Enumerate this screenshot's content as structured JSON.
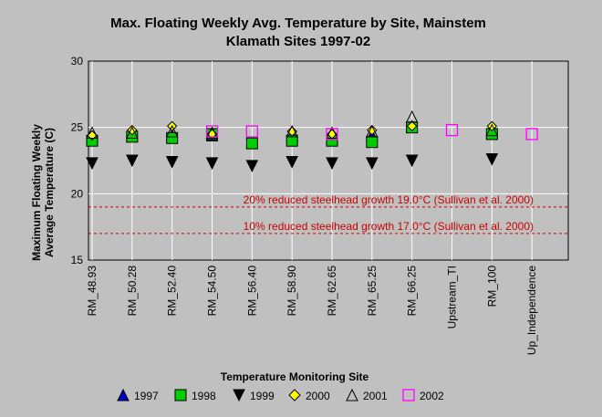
{
  "chart_data": {
    "type": "scatter",
    "title_line1": "Max. Floating Weekly Avg. Temperature by Site, Mainstem",
    "title_line2": "Klamath Sites 1997-02",
    "xlabel": "Temperature Monitoring Site",
    "ylabel_line1": "Maximum Floating Weekly",
    "ylabel_line2": "Average Temperature (C)",
    "ylim": [
      15,
      30
    ],
    "yticks": [
      15,
      20,
      25,
      30
    ],
    "grid": true,
    "categories": [
      "RM_48.93",
      "RM_50.28",
      "RM_52.40",
      "RM_54.50",
      "RM_56.40",
      "RM_58.90",
      "RM_62.65",
      "RM_65.25",
      "RM_66.25",
      "Upstream_TI",
      "RM_100",
      "Up_Independence"
    ],
    "series": [
      {
        "name": "1997",
        "marker": "triangle-up",
        "color": "#0000cc",
        "values": [
          24.3,
          24.4,
          24.4,
          24.4,
          null,
          24.4,
          24.3,
          24.4,
          25.1,
          null,
          24.6,
          null
        ]
      },
      {
        "name": "1998",
        "marker": "square",
        "color": "#00cc00",
        "values": [
          24.0,
          24.3,
          24.2,
          24.5,
          23.8,
          24.0,
          24.0,
          23.9,
          25.0,
          null,
          24.5,
          null
        ]
      },
      {
        "name": "1999",
        "marker": "triangle-down",
        "color": "#000000",
        "values": [
          22.3,
          22.5,
          22.4,
          22.3,
          22.1,
          22.4,
          22.3,
          22.3,
          22.5,
          null,
          22.6,
          null
        ]
      },
      {
        "name": "2000",
        "marker": "diamond",
        "color": "#ffff00",
        "values": [
          24.4,
          24.8,
          25.1,
          24.5,
          null,
          24.7,
          24.5,
          24.8,
          25.1,
          null,
          25.1,
          null
        ]
      },
      {
        "name": "2001",
        "marker": "triangle-up-open",
        "color": "#000000",
        "values": [
          24.6,
          24.6,
          24.7,
          24.6,
          null,
          24.7,
          24.6,
          24.7,
          25.8,
          null,
          24.8,
          null
        ]
      },
      {
        "name": "2002",
        "marker": "square-open",
        "color": "#ff00ff",
        "values": [
          null,
          null,
          null,
          24.7,
          24.7,
          null,
          24.5,
          null,
          null,
          24.8,
          null,
          24.5
        ]
      }
    ],
    "reference_lines": [
      {
        "value": 19.0,
        "label": "20% reduced steelhead growth 19.0°C (Sullivan et al. 2000)",
        "color": "#cc0000"
      },
      {
        "value": 17.0,
        "label": "10% reduced steelhead growth 17.0°C (Sullivan et al. 2000)",
        "color": "#cc0000"
      }
    ],
    "legend_position": "bottom"
  }
}
